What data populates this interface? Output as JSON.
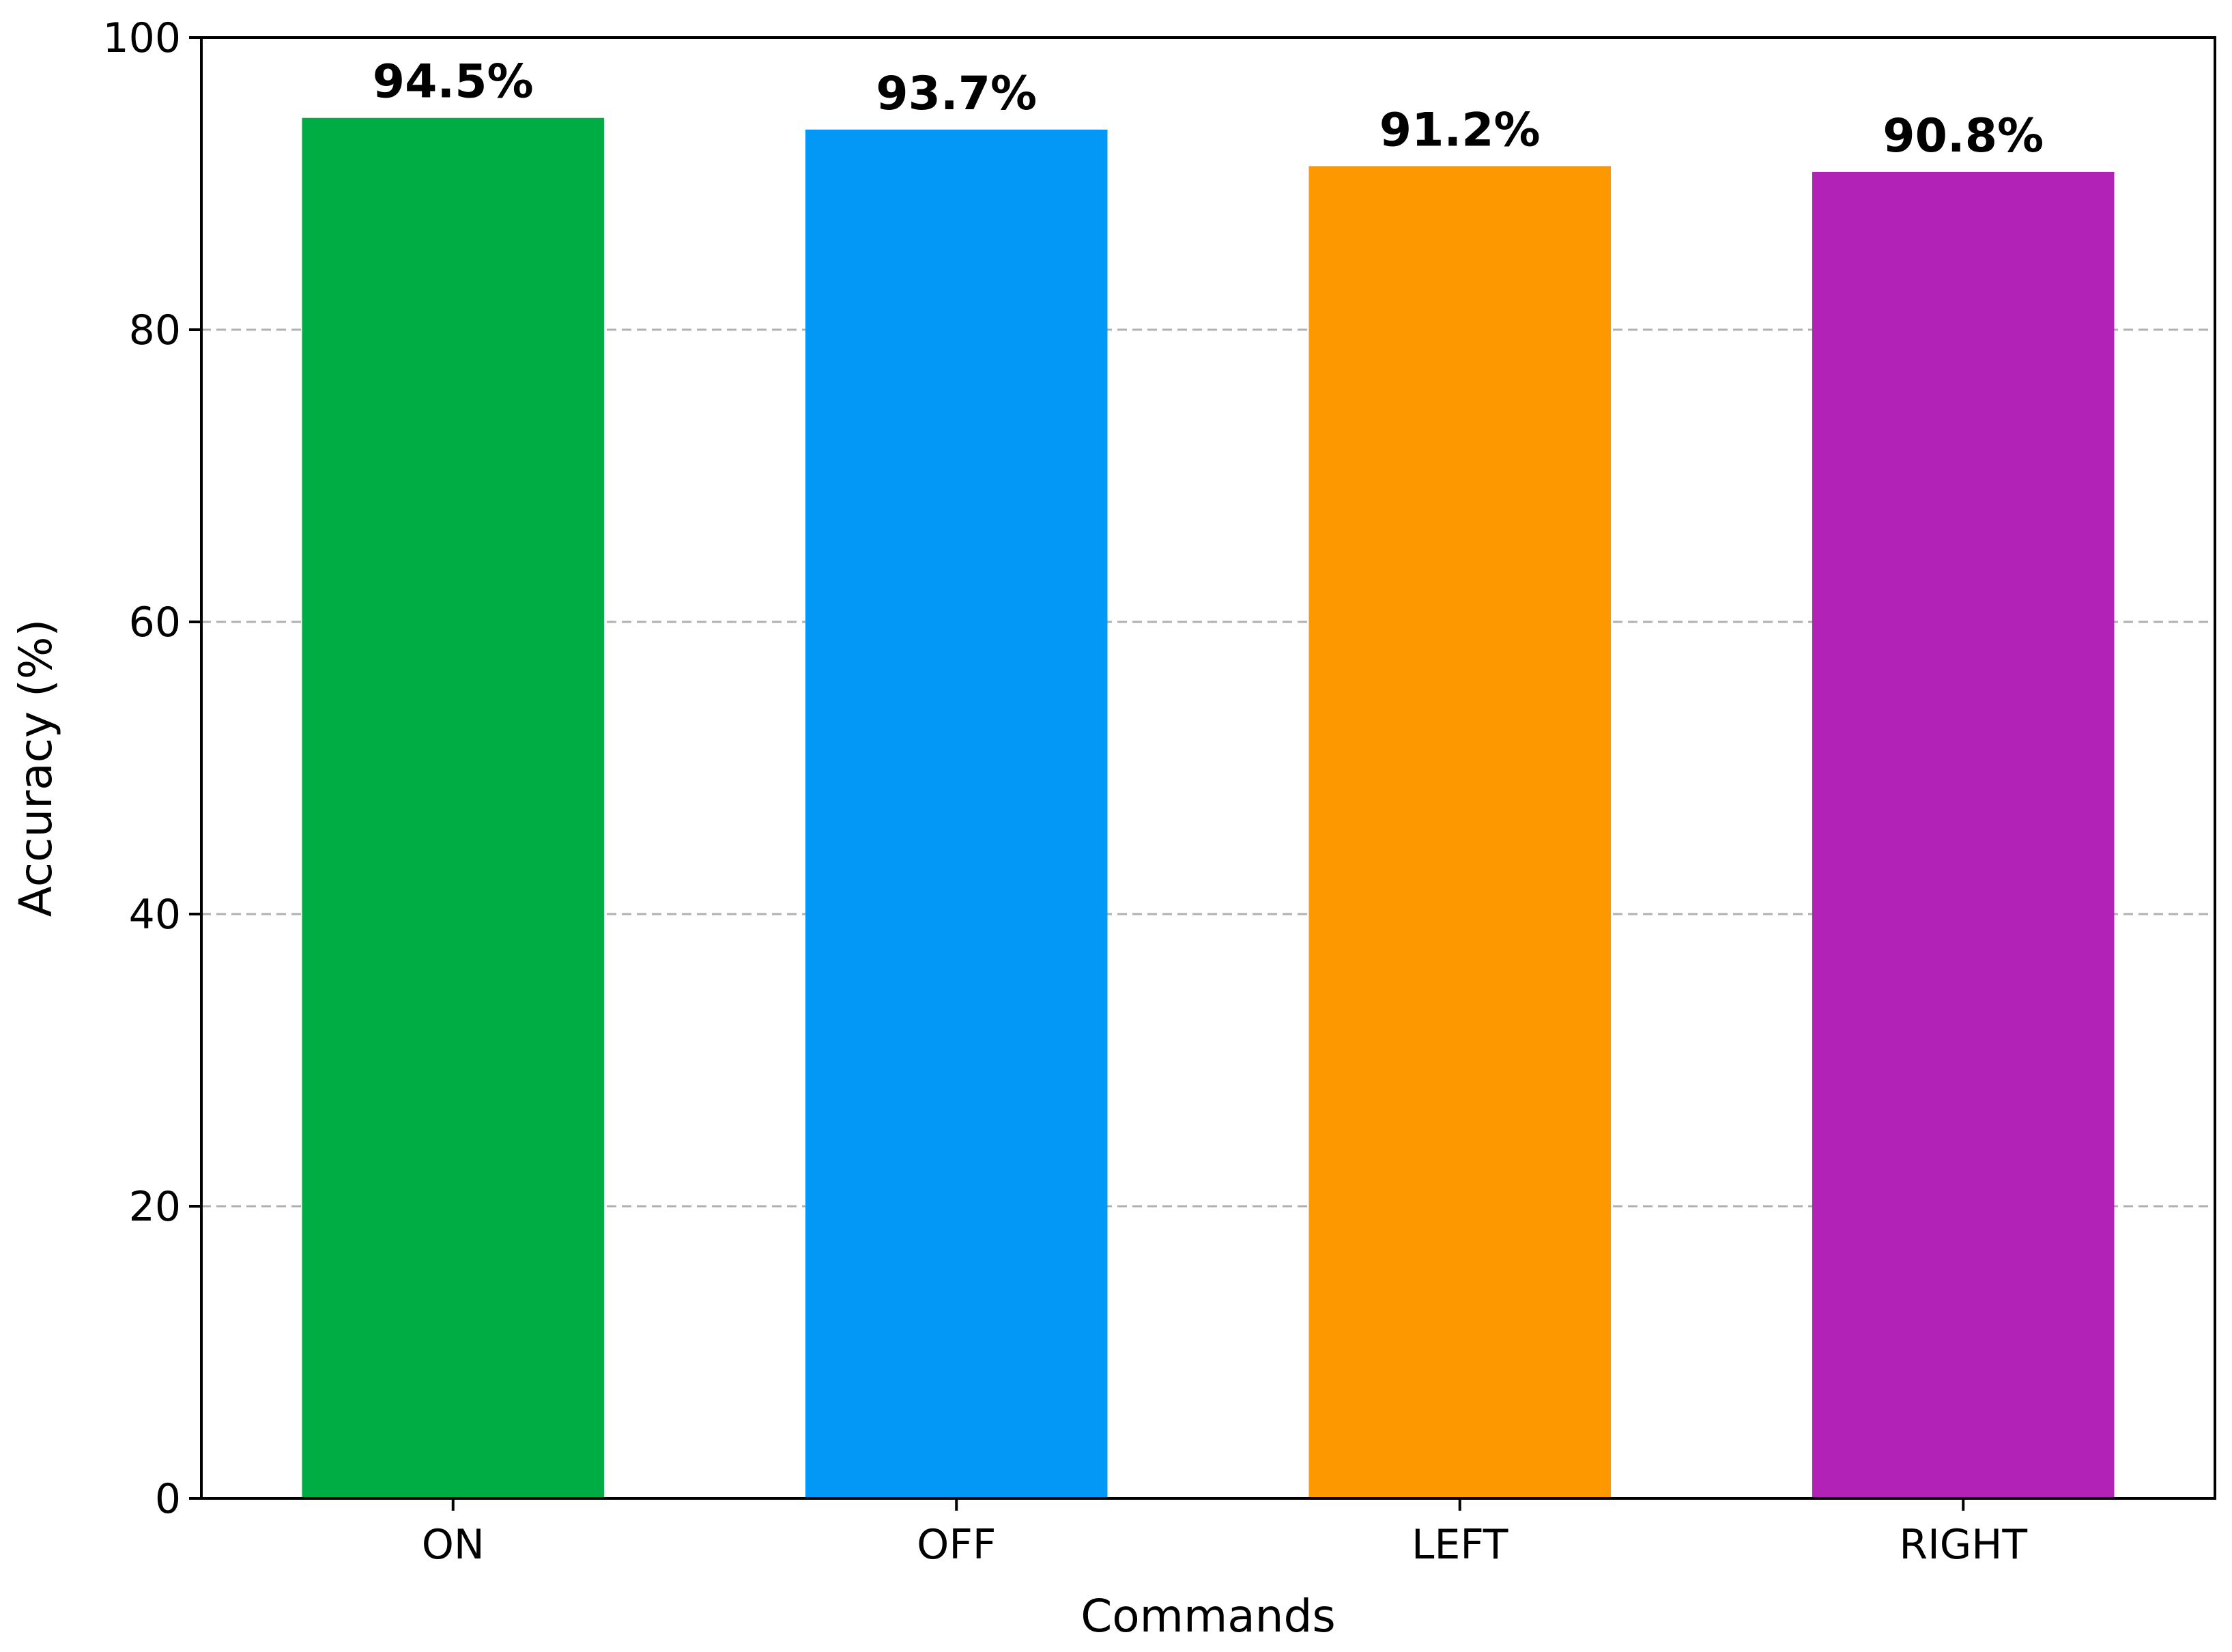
{
  "chart_data": {
    "type": "bar",
    "title": "",
    "xlabel": "Commands",
    "ylabel": "Accuracy (%)",
    "categories": [
      "ON",
      "OFF",
      "LEFT",
      "RIGHT"
    ],
    "values": [
      94.5,
      93.7,
      91.2,
      90.8
    ],
    "value_labels": [
      "94.5%",
      "93.7%",
      "91.2%",
      "90.8%"
    ],
    "colors": [
      "#00ad45",
      "#0398f5",
      "#fe9800",
      "#b222b6"
    ],
    "ylim": [
      0,
      100
    ],
    "yticks": [
      0,
      20,
      40,
      60,
      80,
      100
    ],
    "grid": "horizontal dashed",
    "legend": false
  }
}
